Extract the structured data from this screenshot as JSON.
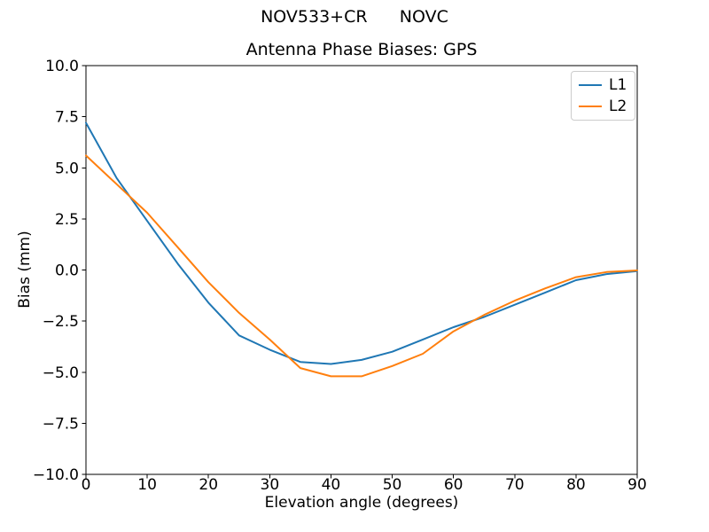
{
  "figure": {
    "suptitle": "NOV533+CR      NOVC",
    "background": "#ffffff"
  },
  "chart_data": {
    "type": "line",
    "title": "Antenna Phase Biases: GPS",
    "xlabel": "Elevation angle (degrees)",
    "ylabel": "Bias (mm)",
    "xlim": [
      0,
      90
    ],
    "ylim": [
      -10,
      10
    ],
    "grid": false,
    "axis_color": "#000000",
    "legend": {
      "position": "upper right",
      "border_color": "#cccccc"
    },
    "xticks": [
      {
        "value": 0,
        "label": "0"
      },
      {
        "value": 10,
        "label": "10"
      },
      {
        "value": 20,
        "label": "20"
      },
      {
        "value": 30,
        "label": "30"
      },
      {
        "value": 40,
        "label": "40"
      },
      {
        "value": 50,
        "label": "50"
      },
      {
        "value": 60,
        "label": "60"
      },
      {
        "value": 70,
        "label": "70"
      },
      {
        "value": 80,
        "label": "80"
      },
      {
        "value": 90,
        "label": "90"
      }
    ],
    "yticks": [
      {
        "value": 10,
        "label": "10.0"
      },
      {
        "value": 7.5,
        "label": "7.5"
      },
      {
        "value": 5,
        "label": "5.0"
      },
      {
        "value": 2.5,
        "label": "2.5"
      },
      {
        "value": 0,
        "label": "0.0"
      },
      {
        "value": -2.5,
        "label": "−2.5"
      },
      {
        "value": -5,
        "label": "−5.0"
      },
      {
        "value": -7.5,
        "label": "−7.5"
      },
      {
        "value": -10,
        "label": "−10.0"
      }
    ],
    "x": [
      0,
      5,
      10,
      15,
      20,
      25,
      30,
      35,
      40,
      45,
      50,
      55,
      60,
      65,
      70,
      75,
      80,
      85,
      90
    ],
    "series": [
      {
        "name": "L1",
        "color": "#1f77b4",
        "values": [
          7.2,
          4.5,
          2.4,
          0.3,
          -1.6,
          -3.2,
          -3.9,
          -4.5,
          -4.6,
          -4.4,
          -4.0,
          -3.4,
          -2.8,
          -2.3,
          -1.7,
          -1.1,
          -0.5,
          -0.2,
          -0.05
        ]
      },
      {
        "name": "L2",
        "color": "#ff7f0e",
        "values": [
          5.6,
          4.2,
          2.8,
          1.1,
          -0.6,
          -2.1,
          -3.4,
          -4.8,
          -5.2,
          -5.2,
          -4.7,
          -4.1,
          -3.0,
          -2.2,
          -1.5,
          -0.9,
          -0.35,
          -0.1,
          -0.02
        ]
      }
    ]
  }
}
